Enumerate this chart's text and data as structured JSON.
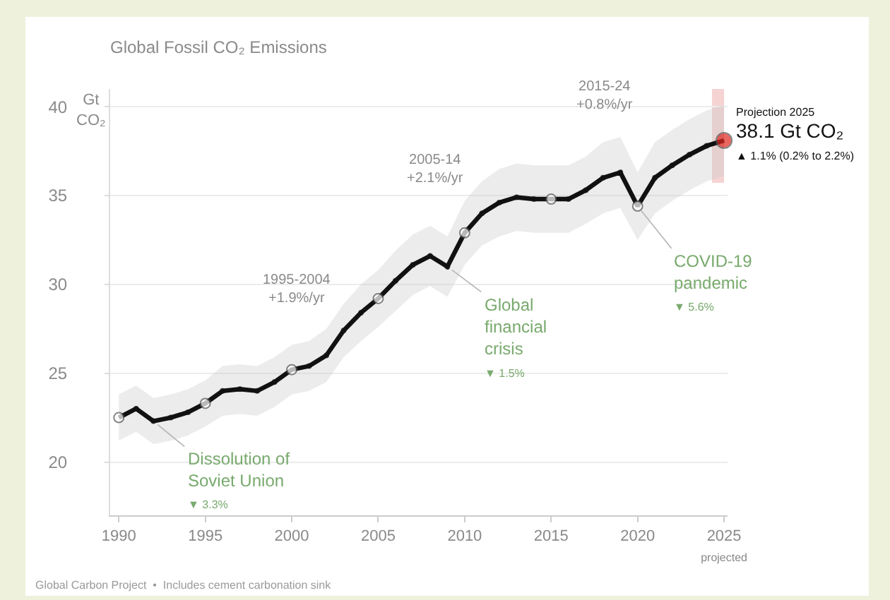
{
  "chart_data": {
    "type": "line",
    "title": "Global Fossil CO₂ Emissions",
    "ylabel": "Gt\nCO₂",
    "x": [
      1990,
      1991,
      1992,
      1993,
      1994,
      1995,
      1996,
      1997,
      1998,
      1999,
      2000,
      2001,
      2002,
      2003,
      2004,
      2005,
      2006,
      2007,
      2008,
      2009,
      2010,
      2011,
      2012,
      2013,
      2014,
      2015,
      2016,
      2017,
      2018,
      2019,
      2020,
      2021,
      2022,
      2023,
      2024,
      2025
    ],
    "series": [
      {
        "color": "#111111",
        "marker": "circle",
        "line_style": "solid",
        "values": [
          22.5,
          23.0,
          22.3,
          22.5,
          22.8,
          23.3,
          24.0,
          24.1,
          24.0,
          24.5,
          25.2,
          25.4,
          26.0,
          27.4,
          28.4,
          29.2,
          30.2,
          31.1,
          31.6,
          31.0,
          32.9,
          34.0,
          34.6,
          34.9,
          34.8,
          34.8,
          34.8,
          35.3,
          36.0,
          36.3,
          34.4,
          36.0,
          36.7,
          37.3,
          37.8,
          38.1
        ],
        "lower": [
          21.2,
          21.7,
          21.0,
          21.2,
          21.5,
          22.0,
          22.6,
          22.7,
          22.6,
          23.1,
          23.8,
          24.0,
          24.5,
          25.9,
          26.8,
          27.6,
          28.5,
          29.4,
          29.9,
          29.3,
          31.1,
          32.2,
          32.7,
          33.0,
          32.9,
          32.9,
          32.9,
          33.4,
          34.0,
          34.3,
          32.5,
          34.0,
          34.7,
          35.3,
          35.8,
          36.1
        ],
        "upper": [
          23.8,
          24.3,
          23.6,
          23.8,
          24.1,
          24.6,
          25.4,
          25.5,
          25.4,
          25.9,
          26.6,
          26.8,
          27.5,
          28.9,
          30.0,
          30.8,
          31.9,
          32.8,
          33.3,
          32.7,
          34.7,
          35.8,
          36.5,
          36.8,
          36.7,
          36.7,
          36.7,
          37.2,
          38.0,
          38.3,
          36.3,
          38.0,
          38.7,
          39.3,
          39.8,
          40.1
        ],
        "colors": [
          "#ffffff",
          "#111111",
          "#111111",
          "#111111",
          "#111111",
          "#ffffff",
          "#111111",
          "#111111",
          "#111111",
          "#111111",
          "#ffffff",
          "#111111",
          "#111111",
          "#111111",
          "#111111",
          "#ffffff",
          "#111111",
          "#111111",
          "#111111",
          "#111111",
          "#ffffff",
          "#111111",
          "#111111",
          "#111111",
          "#111111",
          "#ffffff",
          "#111111",
          "#111111",
          "#111111",
          "#111111",
          "#ffffff",
          "#111111",
          "#111111",
          "#111111",
          "#111111",
          "#e0261e"
        ]
      }
    ],
    "xlim": [
      1989.5,
      2025.2
    ],
    "ylim": [
      17,
      41
    ],
    "xticks": [
      1990,
      1995,
      2000,
      2005,
      2010,
      2015,
      2020,
      {
        "value": 2025,
        "label": "2025\nprojected"
      }
    ],
    "yticks": [
      20,
      25,
      30,
      35,
      40
    ],
    "grid": "y",
    "bands": [
      {
        "axis": "x",
        "from": 2024.3,
        "to": 2025,
        "color": "#f6d3d3"
      }
    ],
    "annotations": [
      {
        "text": "Dissolution of\nSoviet Union\n▼ 3.3%",
        "x": 1992,
        "y": 22.3
      },
      {
        "text": "Global\nfinancial\ncrisis\n▼ 1.5%",
        "x": 2009,
        "y": 31.0
      },
      {
        "text": "COVID-19\npandemic\n▼ 5.6%",
        "x": 2020,
        "y": 34.4
      },
      {
        "text": "Projection 2025\n38.1 Gt CO₂\n▲ 1.1% (0.2% to 2.2%)",
        "x": 2025,
        "y": 38.1
      },
      "1995-2004\n+1.9%/yr",
      "2005-14\n+2.1%/yr",
      "2015-24\n+0.8%/yr",
      "Global Carbon Project  •  Includes cement carbonation sink"
    ]
  }
}
